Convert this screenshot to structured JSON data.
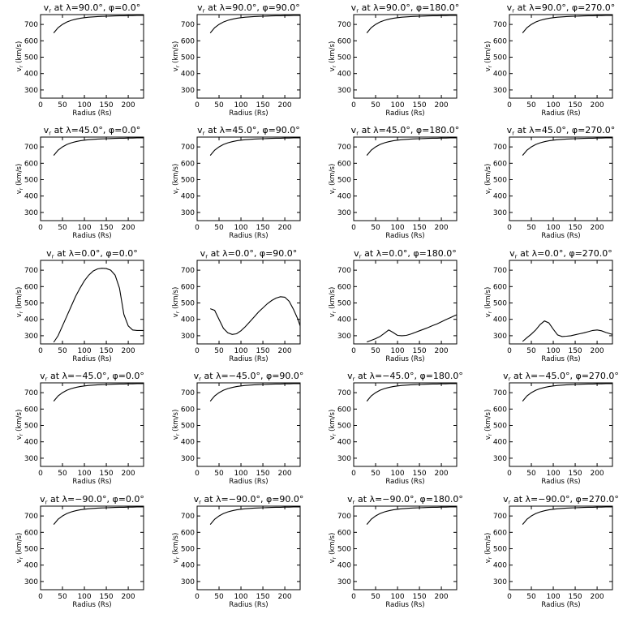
{
  "radius_samples": [
    30,
    40,
    50,
    60,
    70,
    80,
    90,
    100,
    110,
    120,
    130,
    140,
    150,
    160,
    170,
    180,
    190,
    200,
    210,
    220,
    230,
    235
  ],
  "chart_data": [
    {
      "type": "line",
      "title_lat": "90.0",
      "title_phi": "0.0",
      "xlabel": "Radius (Rs)",
      "ylabel": "vr (km/s)",
      "xlim": [
        0,
        235
      ],
      "ylim": [
        250,
        760
      ],
      "xticks": [
        0,
        50,
        100,
        150,
        200
      ],
      "yticks": [
        300,
        400,
        500,
        600,
        700
      ],
      "series": [
        {
          "y": [
            648,
            680,
            700,
            715,
            725,
            732,
            737,
            741,
            744,
            746,
            748,
            749,
            750,
            751,
            752,
            753,
            753,
            754,
            754,
            755,
            755,
            755
          ]
        }
      ]
    },
    {
      "type": "line",
      "title_lat": "90.0",
      "title_phi": "90.0",
      "xlabel": "Radius (Rs)",
      "ylabel": "vr (km/s)",
      "xlim": [
        0,
        235
      ],
      "ylim": [
        250,
        760
      ],
      "xticks": [
        0,
        50,
        100,
        150,
        200
      ],
      "yticks": [
        300,
        400,
        500,
        600,
        700
      ],
      "series": [
        {
          "y": [
            648,
            680,
            700,
            715,
            725,
            732,
            737,
            741,
            744,
            746,
            748,
            749,
            750,
            751,
            752,
            753,
            753,
            754,
            754,
            755,
            755,
            755
          ]
        }
      ]
    },
    {
      "type": "line",
      "title_lat": "90.0",
      "title_phi": "180.0",
      "xlabel": "Radius (Rs)",
      "ylabel": "vr (km/s)",
      "xlim": [
        0,
        235
      ],
      "ylim": [
        250,
        760
      ],
      "xticks": [
        0,
        50,
        100,
        150,
        200
      ],
      "yticks": [
        300,
        400,
        500,
        600,
        700
      ],
      "series": [
        {
          "y": [
            648,
            680,
            700,
            715,
            725,
            732,
            737,
            741,
            744,
            746,
            748,
            749,
            750,
            751,
            752,
            753,
            753,
            754,
            754,
            755,
            755,
            755
          ]
        }
      ]
    },
    {
      "type": "line",
      "title_lat": "90.0",
      "title_phi": "270.0",
      "xlabel": "Radius (Rs)",
      "ylabel": "vr (km/s)",
      "xlim": [
        0,
        235
      ],
      "ylim": [
        250,
        760
      ],
      "xticks": [
        0,
        50,
        100,
        150,
        200
      ],
      "yticks": [
        300,
        400,
        500,
        600,
        700
      ],
      "series": [
        {
          "y": [
            648,
            680,
            700,
            715,
            725,
            732,
            737,
            741,
            744,
            746,
            748,
            749,
            750,
            751,
            752,
            753,
            753,
            754,
            754,
            755,
            755,
            755
          ]
        }
      ]
    },
    {
      "type": "line",
      "title_lat": "45.0",
      "title_phi": "0.0",
      "xlabel": "Radius (Rs)",
      "ylabel": "vr (km/s)",
      "xlim": [
        0,
        235
      ],
      "ylim": [
        250,
        760
      ],
      "xticks": [
        0,
        50,
        100,
        150,
        200
      ],
      "yticks": [
        300,
        400,
        500,
        600,
        700
      ],
      "series": [
        {
          "y": [
            648,
            680,
            700,
            715,
            725,
            732,
            737,
            741,
            744,
            746,
            748,
            749,
            750,
            751,
            752,
            753,
            753,
            754,
            754,
            755,
            755,
            755
          ]
        }
      ]
    },
    {
      "type": "line",
      "title_lat": "45.0",
      "title_phi": "90.0",
      "xlabel": "Radius (Rs)",
      "ylabel": "vr (km/s)",
      "xlim": [
        0,
        235
      ],
      "ylim": [
        250,
        760
      ],
      "xticks": [
        0,
        50,
        100,
        150,
        200
      ],
      "yticks": [
        300,
        400,
        500,
        600,
        700
      ],
      "series": [
        {
          "y": [
            648,
            680,
            700,
            715,
            725,
            732,
            737,
            741,
            744,
            746,
            748,
            749,
            750,
            751,
            752,
            753,
            753,
            754,
            754,
            755,
            755,
            755
          ]
        }
      ]
    },
    {
      "type": "line",
      "title_lat": "45.0",
      "title_phi": "180.0",
      "xlabel": "Radius (Rs)",
      "ylabel": "vr (km/s)",
      "xlim": [
        0,
        235
      ],
      "ylim": [
        250,
        760
      ],
      "xticks": [
        0,
        50,
        100,
        150,
        200
      ],
      "yticks": [
        300,
        400,
        500,
        600,
        700
      ],
      "series": [
        {
          "y": [
            648,
            680,
            700,
            715,
            725,
            732,
            737,
            741,
            744,
            746,
            748,
            749,
            750,
            751,
            752,
            753,
            753,
            754,
            754,
            755,
            755,
            755
          ]
        }
      ]
    },
    {
      "type": "line",
      "title_lat": "45.0",
      "title_phi": "270.0",
      "xlabel": "Radius (Rs)",
      "ylabel": "vr (km/s)",
      "xlim": [
        0,
        235
      ],
      "ylim": [
        250,
        760
      ],
      "xticks": [
        0,
        50,
        100,
        150,
        200
      ],
      "yticks": [
        300,
        400,
        500,
        600,
        700
      ],
      "series": [
        {
          "y": [
            648,
            680,
            700,
            715,
            725,
            732,
            737,
            741,
            744,
            746,
            748,
            749,
            750,
            751,
            752,
            753,
            753,
            754,
            754,
            755,
            755,
            755
          ]
        }
      ]
    },
    {
      "type": "line",
      "title_lat": "0.0",
      "title_phi": "0.0",
      "xlabel": "Radius (Rs)",
      "ylabel": "vr (km/s)",
      "xlim": [
        0,
        235
      ],
      "ylim": [
        250,
        760
      ],
      "xticks": [
        0,
        50,
        100,
        150,
        200
      ],
      "yticks": [
        300,
        400,
        500,
        600,
        700
      ],
      "series": [
        {
          "y": [
            260,
            300,
            360,
            420,
            480,
            540,
            590,
            635,
            670,
            695,
            708,
            712,
            710,
            700,
            670,
            590,
            430,
            360,
            335,
            332,
            332,
            332
          ]
        }
      ]
    },
    {
      "type": "line",
      "title_lat": "0.0",
      "title_phi": "90.0",
      "xlabel": "Radius (Rs)",
      "ylabel": "vr (km/s)",
      "xlim": [
        0,
        235
      ],
      "ylim": [
        250,
        760
      ],
      "xticks": [
        0,
        50,
        100,
        150,
        200
      ],
      "yticks": [
        300,
        400,
        500,
        600,
        700
      ],
      "series": [
        {
          "y": [
            465,
            455,
            400,
            345,
            318,
            308,
            312,
            330,
            355,
            385,
            415,
            445,
            470,
            495,
            515,
            530,
            538,
            535,
            510,
            460,
            400,
            360
          ]
        }
      ]
    },
    {
      "type": "line",
      "title_lat": "0.0",
      "title_phi": "180.0",
      "xlabel": "Radius (Rs)",
      "ylabel": "vr (km/s)",
      "xlim": [
        0,
        235
      ],
      "ylim": [
        250,
        760
      ],
      "xticks": [
        0,
        50,
        100,
        150,
        200
      ],
      "yticks": [
        300,
        400,
        500,
        600,
        700
      ],
      "series": [
        {
          "y": [
            262,
            272,
            282,
            295,
            315,
            335,
            320,
            302,
            300,
            302,
            310,
            320,
            330,
            340,
            350,
            362,
            372,
            385,
            398,
            410,
            422,
            428
          ]
        }
      ]
    },
    {
      "type": "line",
      "title_lat": "0.0",
      "title_phi": "270.0",
      "xlabel": "Radius (Rs)",
      "ylabel": "vr (km/s)",
      "xlim": [
        0,
        235
      ],
      "ylim": [
        250,
        760
      ],
      "xticks": [
        0,
        50,
        100,
        150,
        200
      ],
      "yticks": [
        300,
        400,
        500,
        600,
        700
      ],
      "series": [
        {
          "y": [
            265,
            288,
            310,
            335,
            368,
            390,
            378,
            340,
            305,
            295,
            297,
            300,
            306,
            312,
            318,
            325,
            332,
            335,
            330,
            320,
            312,
            308
          ]
        }
      ]
    },
    {
      "type": "line",
      "title_lat": "−45.0",
      "title_phi": "0.0",
      "xlabel": "Radius (Rs)",
      "ylabel": "vr (km/s)",
      "xlim": [
        0,
        235
      ],
      "ylim": [
        250,
        760
      ],
      "xticks": [
        0,
        50,
        100,
        150,
        200
      ],
      "yticks": [
        300,
        400,
        500,
        600,
        700
      ],
      "series": [
        {
          "y": [
            648,
            680,
            700,
            715,
            725,
            732,
            737,
            741,
            744,
            746,
            748,
            749,
            750,
            751,
            752,
            753,
            753,
            754,
            754,
            755,
            755,
            755
          ]
        }
      ]
    },
    {
      "type": "line",
      "title_lat": "−45.0",
      "title_phi": "90.0",
      "xlabel": "Radius (Rs)",
      "ylabel": "vr (km/s)",
      "xlim": [
        0,
        235
      ],
      "ylim": [
        250,
        760
      ],
      "xticks": [
        0,
        50,
        100,
        150,
        200
      ],
      "yticks": [
        300,
        400,
        500,
        600,
        700
      ],
      "series": [
        {
          "y": [
            648,
            680,
            700,
            715,
            725,
            732,
            737,
            741,
            744,
            746,
            748,
            749,
            750,
            751,
            752,
            753,
            753,
            754,
            754,
            755,
            755,
            755
          ]
        }
      ]
    },
    {
      "type": "line",
      "title_lat": "−45.0",
      "title_phi": "180.0",
      "xlabel": "Radius (Rs)",
      "ylabel": "vr (km/s)",
      "xlim": [
        0,
        235
      ],
      "ylim": [
        250,
        760
      ],
      "xticks": [
        0,
        50,
        100,
        150,
        200
      ],
      "yticks": [
        300,
        400,
        500,
        600,
        700
      ],
      "series": [
        {
          "y": [
            648,
            680,
            700,
            715,
            725,
            732,
            737,
            741,
            744,
            746,
            748,
            749,
            750,
            751,
            752,
            753,
            753,
            754,
            754,
            755,
            755,
            755
          ]
        }
      ]
    },
    {
      "type": "line",
      "title_lat": "−45.0",
      "title_phi": "270.0",
      "xlabel": "Radius (Rs)",
      "ylabel": "vr (km/s)",
      "xlim": [
        0,
        235
      ],
      "ylim": [
        250,
        760
      ],
      "xticks": [
        0,
        50,
        100,
        150,
        200
      ],
      "yticks": [
        300,
        400,
        500,
        600,
        700
      ],
      "series": [
        {
          "y": [
            648,
            680,
            700,
            715,
            725,
            732,
            737,
            741,
            744,
            746,
            748,
            749,
            750,
            751,
            752,
            753,
            753,
            754,
            754,
            755,
            755,
            755
          ]
        }
      ]
    },
    {
      "type": "line",
      "title_lat": "−90.0",
      "title_phi": "0.0",
      "xlabel": "Radius (Rs)",
      "ylabel": "vr (km/s)",
      "xlim": [
        0,
        235
      ],
      "ylim": [
        250,
        760
      ],
      "xticks": [
        0,
        50,
        100,
        150,
        200
      ],
      "yticks": [
        300,
        400,
        500,
        600,
        700
      ],
      "series": [
        {
          "y": [
            648,
            680,
            700,
            715,
            725,
            732,
            737,
            741,
            744,
            746,
            748,
            749,
            750,
            751,
            752,
            753,
            753,
            754,
            754,
            755,
            755,
            755
          ]
        }
      ]
    },
    {
      "type": "line",
      "title_lat": "−90.0",
      "title_phi": "90.0",
      "xlabel": "Radius (Rs)",
      "ylabel": "vr (km/s)",
      "xlim": [
        0,
        235
      ],
      "ylim": [
        250,
        760
      ],
      "xticks": [
        0,
        50,
        100,
        150,
        200
      ],
      "yticks": [
        300,
        400,
        500,
        600,
        700
      ],
      "series": [
        {
          "y": [
            648,
            680,
            700,
            715,
            725,
            732,
            737,
            741,
            744,
            746,
            748,
            749,
            750,
            751,
            752,
            753,
            753,
            754,
            754,
            755,
            755,
            755
          ]
        }
      ]
    },
    {
      "type": "line",
      "title_lat": "−90.0",
      "title_phi": "180.0",
      "xlabel": "Radius (Rs)",
      "ylabel": "vr (km/s)",
      "xlim": [
        0,
        235
      ],
      "ylim": [
        250,
        760
      ],
      "xticks": [
        0,
        50,
        100,
        150,
        200
      ],
      "yticks": [
        300,
        400,
        500,
        600,
        700
      ],
      "series": [
        {
          "y": [
            648,
            680,
            700,
            715,
            725,
            732,
            737,
            741,
            744,
            746,
            748,
            749,
            750,
            751,
            752,
            753,
            753,
            754,
            754,
            755,
            755,
            755
          ]
        }
      ]
    },
    {
      "type": "line",
      "title_lat": "−90.0",
      "title_phi": "270.0",
      "xlabel": "Radius (Rs)",
      "ylabel": "vr (km/s)",
      "xlim": [
        0,
        235
      ],
      "ylim": [
        250,
        760
      ],
      "xticks": [
        0,
        50,
        100,
        150,
        200
      ],
      "yticks": [
        300,
        400,
        500,
        600,
        700
      ],
      "series": [
        {
          "y": [
            648,
            680,
            700,
            715,
            725,
            732,
            737,
            741,
            744,
            746,
            748,
            749,
            750,
            751,
            752,
            753,
            753,
            754,
            754,
            755,
            755,
            755
          ]
        }
      ]
    }
  ]
}
